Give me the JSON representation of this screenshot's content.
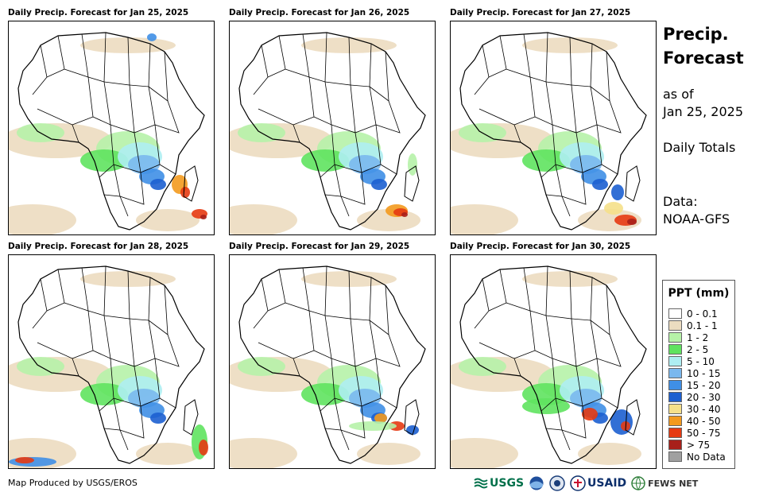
{
  "panels": [
    {
      "title": "Daily Precip. Forecast for Jan 25, 2025"
    },
    {
      "title": "Daily Precip. Forecast for Jan 26, 2025"
    },
    {
      "title": "Daily Precip. Forecast for Jan 27, 2025"
    },
    {
      "title": "Daily Precip. Forecast for Jan 28, 2025"
    },
    {
      "title": "Daily Precip. Forecast for Jan 29, 2025"
    },
    {
      "title": "Daily Precip. Forecast for Jan 30, 2025"
    }
  ],
  "side": {
    "title_line1": "Precip.",
    "title_line2": "Forecast",
    "asof_line1": "as of",
    "asof_line2": "Jan 25, 2025",
    "totals": "Daily Totals",
    "data_line1": "Data:",
    "data_line2": "NOAA-GFS"
  },
  "legend": {
    "title": "PPT (mm)",
    "items": [
      {
        "label": "0 - 0.1",
        "color": "#ffffff"
      },
      {
        "label": "0.1 - 1",
        "color": "#ecdcc0"
      },
      {
        "label": "1 - 2",
        "color": "#b6f2a8"
      },
      {
        "label": "2 - 5",
        "color": "#5fe35f"
      },
      {
        "label": "5 - 10",
        "color": "#aeeef2"
      },
      {
        "label": "10 - 15",
        "color": "#7ab8ee"
      },
      {
        "label": "15 - 20",
        "color": "#3f8fe6"
      },
      {
        "label": "20 - 30",
        "color": "#1c5fd0"
      },
      {
        "label": "30 - 40",
        "color": "#f5e08a"
      },
      {
        "label": "40 - 50",
        "color": "#f39a1e"
      },
      {
        "label": "50 - 75",
        "color": "#e63a12"
      },
      {
        "label": "> 75",
        "color": "#a8201a"
      },
      {
        "label": "No Data",
        "color": "#a0a0a0"
      }
    ]
  },
  "footer": {
    "credit": "Map Produced by USGS/EROS"
  },
  "logos": {
    "usgs": "USGS",
    "usaid": "USAID",
    "fewsnet": "FEWS NET"
  }
}
